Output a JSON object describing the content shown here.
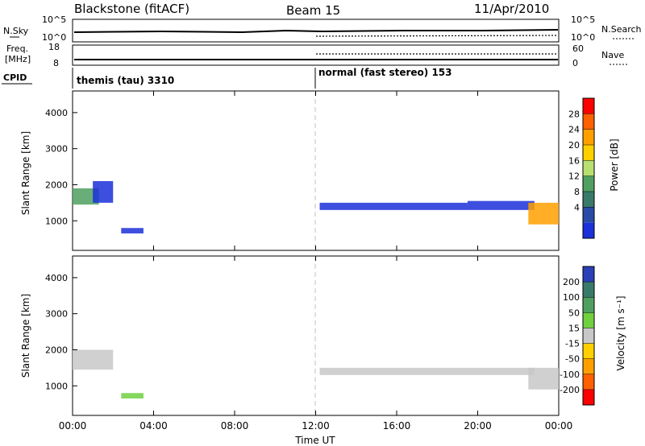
{
  "header": {
    "station": "Blackstone (fitACF)",
    "beam": "Beam 15",
    "date": "11/Apr/2010"
  },
  "top_panels": {
    "nsky_label": "N.Sky",
    "nsearch_label": "N.Search",
    "freq_label_line1": "Freq.",
    "freq_label_line2": "[MHz]",
    "nave_label": "Nave",
    "cpid_label": "CPID",
    "noise_left_ticks": [
      "10^5",
      "10^0"
    ],
    "noise_right_ticks": [
      "10^5",
      "10^0"
    ],
    "freq_left_ticks": [
      "18",
      "8"
    ],
    "nave_right_ticks": [
      "60",
      "0"
    ],
    "cpid_segments": [
      {
        "label": "themis (tau) 3310",
        "start_hour": 0,
        "end_hour": 12
      },
      {
        "label": "normal (fast stereo) 153",
        "start_hour": 12,
        "end_hour": 24
      }
    ]
  },
  "power_colorbar": {
    "title": "Power [dB]",
    "ticks": [
      "28",
      "24",
      "20",
      "16",
      "12",
      "8",
      "4"
    ],
    "colors": [
      "#ff0000",
      "#ff6000",
      "#ffa000",
      "#ffd000",
      "#b8e070",
      "#4fa060",
      "#3a7a6a",
      "#2a4aa8",
      "#1b30d8"
    ]
  },
  "velocity_colorbar": {
    "title": "Velocity [m s⁻¹]",
    "ticks": [
      "200",
      "100",
      "50",
      "15",
      "-15",
      "-50",
      "-100",
      "-200"
    ],
    "colors": [
      "#2a40b8",
      "#3a7a6a",
      "#4fa060",
      "#70d040",
      "#c8c8c8",
      "#ffd000",
      "#ffa000",
      "#ff6000",
      "#ff0000"
    ]
  },
  "chart_data": [
    {
      "type": "heatmap",
      "name": "power",
      "ylabel": "Slant Range [km]",
      "xlabel": "Time UT",
      "xlim": [
        0,
        24
      ],
      "ylim": [
        180,
        4600
      ],
      "y_ticks": [
        1000,
        2000,
        3000,
        4000
      ],
      "x_ticks": [
        "00:00",
        "04:00",
        "08:00",
        "12:00",
        "16:00",
        "20:00",
        "00:00"
      ],
      "regions": [
        {
          "t0": 0.0,
          "t1": 1.3,
          "r0": 1450,
          "r1": 1900,
          "level": "green"
        },
        {
          "t0": 1.0,
          "t1": 2.0,
          "r0": 1500,
          "r1": 2100,
          "level": "blue"
        },
        {
          "t0": 2.4,
          "t1": 3.5,
          "r0": 650,
          "r1": 800,
          "level": "blue"
        },
        {
          "t0": 12.2,
          "t1": 19.5,
          "r0": 1300,
          "r1": 1500,
          "level": "blue"
        },
        {
          "t0": 19.5,
          "t1": 22.8,
          "r0": 1300,
          "r1": 1550,
          "level": "blue"
        },
        {
          "t0": 22.5,
          "t1": 24.0,
          "r0": 900,
          "r1": 1500,
          "level": "orange"
        }
      ]
    },
    {
      "type": "heatmap",
      "name": "velocity",
      "ylabel": "Slant Range [km]",
      "xlabel": "Time UT",
      "xlim": [
        0,
        24
      ],
      "ylim": [
        180,
        4600
      ],
      "y_ticks": [
        1000,
        2000,
        3000,
        4000
      ],
      "x_ticks": [
        "00:00",
        "04:00",
        "08:00",
        "12:00",
        "16:00",
        "20:00",
        "00:00"
      ],
      "regions": [
        {
          "t0": 0.0,
          "t1": 2.0,
          "r0": 1450,
          "r1": 2000,
          "level": "grey"
        },
        {
          "t0": 2.4,
          "t1": 3.5,
          "r0": 650,
          "r1": 800,
          "level": "green"
        },
        {
          "t0": 12.2,
          "t1": 22.8,
          "r0": 1300,
          "r1": 1500,
          "level": "grey"
        },
        {
          "t0": 22.5,
          "t1": 24.0,
          "r0": 900,
          "r1": 1500,
          "level": "grey"
        }
      ]
    }
  ]
}
